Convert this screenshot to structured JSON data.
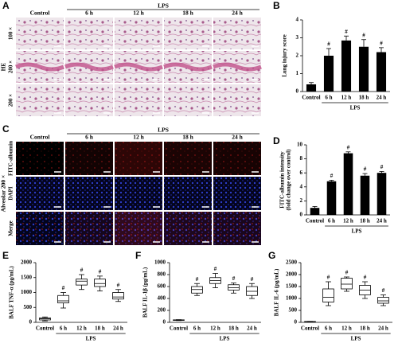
{
  "panel_a": {
    "letter": "A",
    "group_label": "LPS",
    "columns": [
      "Control",
      "6 h",
      "12 h",
      "18 h",
      "24 h"
    ],
    "row_labels": [
      "100 ×",
      "200 ×",
      "200 ×"
    ],
    "stain_label": "HE"
  },
  "panel_c": {
    "letter": "C",
    "group_label": "LPS",
    "columns": [
      "Control",
      "6 h",
      "12 h",
      "18 h",
      "24 h"
    ],
    "row_labels": [
      "FITC-albumin",
      "DAPI",
      "Merge"
    ],
    "side_label": "Alveolar 200 ×"
  },
  "chart_data": [
    {
      "type": "bar",
      "letter": "B",
      "ylabel": [
        "Lung injury score"
      ],
      "categories": [
        "Control",
        "6 h",
        "12 h",
        "18 h",
        "24 h"
      ],
      "group_label": "LPS",
      "values": [
        0.4,
        2.0,
        2.85,
        2.5,
        2.2
      ],
      "errors": [
        0.1,
        0.4,
        0.25,
        0.4,
        0.25
      ],
      "markers": [
        null,
        "#",
        "#",
        "#",
        "#"
      ],
      "ylim": [
        0,
        4
      ],
      "yticks": [
        0,
        1,
        2,
        3,
        4
      ],
      "color": "#000000"
    },
    {
      "type": "bar",
      "letter": "D",
      "ylabel": [
        "FITC-albumin intensity",
        "(fold change over control)"
      ],
      "categories": [
        "Control",
        "6 h",
        "12 h",
        "18 h",
        "24 h"
      ],
      "group_label": "LPS",
      "values": [
        1.0,
        4.8,
        8.8,
        5.6,
        6.0
      ],
      "errors": [
        0.2,
        0.15,
        0.2,
        0.3,
        0.2
      ],
      "markers": [
        null,
        "#",
        "#",
        "#",
        "#"
      ],
      "ylim": [
        0,
        10
      ],
      "yticks": [
        0,
        2,
        4,
        6,
        8,
        10
      ],
      "color": "#000000"
    },
    {
      "type": "box",
      "letter": "E",
      "ylabel": [
        "BALF TNF-α (pg/mL)"
      ],
      "categories": [
        "Control",
        "6 h",
        "12 h",
        "18 h",
        "24 h"
      ],
      "group_label": "LPS",
      "min": [
        50,
        480,
        1100,
        1050,
        700
      ],
      "q1": [
        80,
        650,
        1250,
        1200,
        780
      ],
      "median": [
        120,
        720,
        1380,
        1300,
        850
      ],
      "q3": [
        150,
        900,
        1450,
        1450,
        1000
      ],
      "max": [
        180,
        1000,
        1600,
        1550,
        1100
      ],
      "markers": [
        null,
        "#",
        "#",
        "#",
        "#"
      ],
      "ylim": [
        0,
        2000
      ],
      "yticks": [
        0,
        500,
        1000,
        1500,
        2000
      ]
    },
    {
      "type": "box",
      "letter": "F",
      "ylabel": [
        "BALF IL-1β (pg/mL)"
      ],
      "categories": [
        "Control",
        "6 h",
        "12 h",
        "18 h",
        "24 h"
      ],
      "group_label": "LPS",
      "min": [
        30,
        450,
        580,
        490,
        400
      ],
      "q1": [
        33,
        490,
        650,
        540,
        450
      ],
      "median": [
        38,
        550,
        700,
        580,
        520
      ],
      "q3": [
        42,
        600,
        750,
        630,
        600
      ],
      "max": [
        45,
        650,
        820,
        660,
        650
      ],
      "markers": [
        null,
        "#",
        "#",
        "#",
        "#"
      ],
      "ylim": [
        0,
        1000
      ],
      "yticks": [
        0,
        200,
        400,
        600,
        800,
        1000
      ]
    },
    {
      "type": "box",
      "letter": "G",
      "ylabel": [
        "BALF IL-6 (pg/mL)"
      ],
      "categories": [
        "Control",
        "6 h",
        "12 h",
        "18 h",
        "24 h"
      ],
      "group_label": "LPS",
      "min": [
        20,
        700,
        1300,
        1000,
        700
      ],
      "q1": [
        25,
        850,
        1400,
        1150,
        800
      ],
      "median": [
        30,
        1050,
        1600,
        1350,
        900
      ],
      "q3": [
        35,
        1400,
        1850,
        1550,
        1050
      ],
      "max": [
        40,
        1700,
        1900,
        1700,
        1150
      ],
      "markers": [
        null,
        "#",
        "#",
        "#",
        "#"
      ],
      "ylim": [
        0,
        2500
      ],
      "yticks": [
        0,
        500,
        1000,
        1500,
        2000,
        2500
      ]
    }
  ]
}
